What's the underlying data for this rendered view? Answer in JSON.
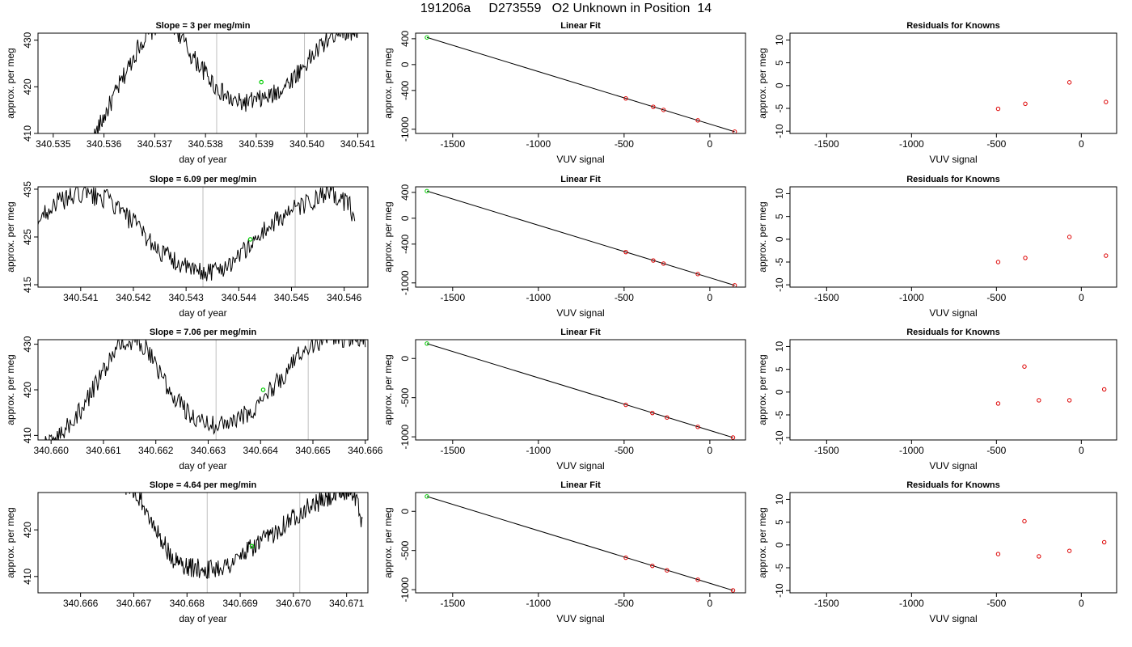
{
  "figure": {
    "title": "191206a     D273559   O2 Unknown in Position  14"
  },
  "chart_data": [
    {
      "type": "line",
      "title": "Slope =  3  per meg/min",
      "xlabel": "day of year",
      "ylabel": "approx. per meg",
      "xlim": [
        340.5347,
        340.5412
      ],
      "ylim": [
        410,
        431.5
      ],
      "xticks": [
        "340.535",
        "340.536",
        "340.537",
        "340.538",
        "340.539",
        "340.540",
        "340.541"
      ],
      "yticks": [
        "410",
        "420",
        "430"
      ],
      "trace_range": [
        340.53575,
        340.54115
      ],
      "trace_knots": [
        [
          340.53575,
          408
        ],
        [
          340.5362,
          418
        ],
        [
          340.5367,
          429
        ],
        [
          340.5371,
          434
        ],
        [
          340.5374,
          433
        ],
        [
          340.5377,
          427
        ],
        [
          340.538,
          423
        ],
        [
          340.5382,
          420
        ],
        [
          340.5385,
          417
        ],
        [
          340.5387,
          416.5
        ],
        [
          340.539,
          417
        ],
        [
          340.5393,
          418
        ],
        [
          340.5396,
          420.5
        ],
        [
          340.5399,
          424
        ],
        [
          340.5403,
          429
        ],
        [
          340.5406,
          432
        ],
        [
          340.54115,
          432
        ]
      ],
      "vertical_lines": [
        340.53822,
        340.53995
      ],
      "highlight_point": [
        340.5391,
        421
      ],
      "line_color": "#000000",
      "highlight_color": "#00cc00",
      "vline_color": "#bebebe"
    },
    {
      "type": "scatter",
      "title": "Linear Fit",
      "xlabel": "VUV signal",
      "ylabel": "approx. per meg",
      "xlim": [
        -1716,
        208
      ],
      "ylim": [
        -1065,
        486
      ],
      "xticks": [
        "-1500",
        "-1000",
        "-500",
        "0"
      ],
      "yticks": [
        "-1000",
        "-400",
        "0",
        "400"
      ],
      "points": [
        {
          "x": -1650,
          "y": 420
        },
        {
          "x": -490,
          "y": -523
        },
        {
          "x": -330,
          "y": -653
        },
        {
          "x": -270,
          "y": -701
        },
        {
          "x": -70,
          "y": -863
        },
        {
          "x": 145,
          "y": -1038
        }
      ],
      "fit_line": [
        {
          "x": -1650,
          "y": 420
        },
        {
          "x": 145,
          "y": -1038
        }
      ],
      "highlight_index": 0,
      "point_color": "#dd0000",
      "highlight_color": "#00cc00"
    },
    {
      "type": "scatter",
      "title": "Residuals for Knowns",
      "xlabel": "VUV signal",
      "ylabel": "approx. per meg",
      "xlim": [
        -1716,
        208
      ],
      "ylim": [
        -10.5,
        11.5
      ],
      "xticks": [
        "-1500",
        "-1000",
        "-500",
        "0"
      ],
      "yticks": [
        "-10",
        "-5",
        "0",
        "5",
        "10"
      ],
      "points": [
        {
          "x": -490,
          "y": -5.1
        },
        {
          "x": -330,
          "y": -4.0
        },
        {
          "x": -70,
          "y": 0.7
        },
        {
          "x": 145,
          "y": -3.6
        }
      ],
      "point_color": "#dd0000"
    },
    {
      "type": "line",
      "title": "Slope =  6.09  per meg/min",
      "xlabel": "day of year",
      "ylabel": "approx. per meg",
      "xlim": [
        340.54019,
        340.54645
      ],
      "ylim": [
        414.5,
        435.5
      ],
      "xticks": [
        "340.541",
        "340.542",
        "340.543",
        "340.544",
        "340.545",
        "340.546"
      ],
      "yticks": [
        "415",
        "425",
        "435"
      ],
      "trace_range": [
        340.5401,
        340.5462
      ],
      "trace_knots": [
        [
          340.5401,
          427.5
        ],
        [
          340.5405,
          432
        ],
        [
          340.541,
          434
        ],
        [
          340.5415,
          433
        ],
        [
          340.542,
          428
        ],
        [
          340.5425,
          422
        ],
        [
          340.543,
          418.5
        ],
        [
          340.5433,
          417.5
        ],
        [
          340.5437,
          418.5
        ],
        [
          340.5441,
          422
        ],
        [
          340.5445,
          426.5
        ],
        [
          340.5449,
          430
        ],
        [
          340.5453,
          432
        ],
        [
          340.5457,
          434
        ],
        [
          340.5461,
          432
        ],
        [
          340.5462,
          428
        ]
      ],
      "vertical_lines": [
        340.54332,
        340.54507
      ],
      "highlight_point": [
        340.54422,
        424.5
      ],
      "line_color": "#000000",
      "highlight_color": "#00cc00",
      "vline_color": "#bebebe"
    },
    {
      "type": "scatter",
      "title": "Linear Fit",
      "xlabel": "VUV signal",
      "ylabel": "approx. per meg",
      "xlim": [
        -1716,
        208
      ],
      "ylim": [
        -1065,
        486
      ],
      "xticks": [
        "-1500",
        "-1000",
        "-500",
        "0"
      ],
      "yticks": [
        "-1000",
        "-400",
        "0",
        "400"
      ],
      "points": [
        {
          "x": -1650,
          "y": 420
        },
        {
          "x": -490,
          "y": -523
        },
        {
          "x": -330,
          "y": -653
        },
        {
          "x": -270,
          "y": -701
        },
        {
          "x": -70,
          "y": -863
        },
        {
          "x": 145,
          "y": -1038
        }
      ],
      "fit_line": [
        {
          "x": -1650,
          "y": 420
        },
        {
          "x": 145,
          "y": -1038
        }
      ],
      "highlight_index": 0,
      "point_color": "#dd0000",
      "highlight_color": "#00cc00"
    },
    {
      "type": "scatter",
      "title": "Residuals for Knowns",
      "xlabel": "VUV signal",
      "ylabel": "approx. per meg",
      "xlim": [
        -1716,
        208
      ],
      "ylim": [
        -10.5,
        11.5
      ],
      "xticks": [
        "-1500",
        "-1000",
        "-500",
        "0"
      ],
      "yticks": [
        "-10",
        "-5",
        "0",
        "5",
        "10"
      ],
      "points": [
        {
          "x": -490,
          "y": -5.0
        },
        {
          "x": -330,
          "y": -4.1
        },
        {
          "x": -70,
          "y": 0.5
        },
        {
          "x": 145,
          "y": -3.6
        }
      ],
      "point_color": "#dd0000"
    },
    {
      "type": "line",
      "title": "Slope =  7.06  per meg/min",
      "xlabel": "day of year",
      "ylabel": "approx. per meg",
      "xlim": [
        340.65975,
        340.66605
      ],
      "ylim": [
        409,
        431
      ],
      "xticks": [
        "340.660",
        "340.661",
        "340.662",
        "340.663",
        "340.664",
        "340.665",
        "340.666"
      ],
      "yticks": [
        "410",
        "420",
        "430"
      ],
      "trace_range": [
        340.6598,
        340.666
      ],
      "trace_knots": [
        [
          340.6598,
          407
        ],
        [
          340.6602,
          410.5
        ],
        [
          340.6606,
          416
        ],
        [
          340.661,
          424
        ],
        [
          340.6613,
          430
        ],
        [
          340.6616,
          431
        ],
        [
          340.6619,
          428
        ],
        [
          340.6622,
          421
        ],
        [
          340.6626,
          415
        ],
        [
          340.6629,
          413
        ],
        [
          340.6632,
          412
        ],
        [
          340.6635,
          413
        ],
        [
          340.6639,
          416
        ],
        [
          340.6642,
          420
        ],
        [
          340.6645,
          424
        ],
        [
          340.6648,
          429
        ],
        [
          340.6652,
          431
        ],
        [
          340.6657,
          431.5
        ],
        [
          340.666,
          431
        ]
      ],
      "vertical_lines": [
        340.66315,
        340.66491
      ],
      "highlight_point": [
        340.66405,
        420
      ],
      "line_color": "#000000",
      "highlight_color": "#00cc00",
      "vline_color": "#bebebe"
    },
    {
      "type": "scatter",
      "title": "Linear Fit",
      "xlabel": "VUV signal",
      "ylabel": "approx. per meg",
      "xlim": [
        -1716,
        208
      ],
      "ylim": [
        -1040,
        240
      ],
      "xticks": [
        "-1500",
        "-1000",
        "-500",
        "0"
      ],
      "yticks": [
        "-1000",
        "-500",
        "0"
      ],
      "points": [
        {
          "x": -1650,
          "y": 190
        },
        {
          "x": -490,
          "y": -592
        },
        {
          "x": -335,
          "y": -696
        },
        {
          "x": -250,
          "y": -753
        },
        {
          "x": -70,
          "y": -873
        },
        {
          "x": 135,
          "y": -1009
        }
      ],
      "fit_line": [
        {
          "x": -1650,
          "y": 190
        },
        {
          "x": 135,
          "y": -1009
        }
      ],
      "highlight_index": 0,
      "point_color": "#dd0000",
      "highlight_color": "#00cc00"
    },
    {
      "type": "scatter",
      "title": "Residuals for Knowns",
      "xlabel": "VUV signal",
      "ylabel": "approx. per meg",
      "xlim": [
        -1716,
        208
      ],
      "ylim": [
        -10.5,
        11.5
      ],
      "xticks": [
        "-1500",
        "-1000",
        "-500",
        "0"
      ],
      "yticks": [
        "-10",
        "-5",
        "0",
        "5",
        "10"
      ],
      "points": [
        {
          "x": -490,
          "y": -2.5
        },
        {
          "x": -335,
          "y": 5.6
        },
        {
          "x": -250,
          "y": -1.8
        },
        {
          "x": -70,
          "y": -1.8
        },
        {
          "x": 135,
          "y": 0.6
        }
      ],
      "point_color": "#dd0000"
    },
    {
      "type": "line",
      "title": "Slope =  4.64  per meg/min",
      "xlabel": "day of year",
      "ylabel": "approx. per meg",
      "xlim": [
        340.6652,
        340.6714
      ],
      "ylim": [
        406.5,
        428
      ],
      "xticks": [
        "340.666",
        "340.667",
        "340.668",
        "340.669",
        "340.670",
        "340.671"
      ],
      "yticks": [
        "410",
        "420"
      ],
      "trace_range": [
        340.6668,
        340.6713
      ],
      "trace_knots": [
        [
          340.6668,
          430
        ],
        [
          340.6671,
          427
        ],
        [
          340.6674,
          421
        ],
        [
          340.6677,
          414
        ],
        [
          340.668,
          412
        ],
        [
          340.6684,
          411.5
        ],
        [
          340.6688,
          412.5
        ],
        [
          340.6692,
          416
        ],
        [
          340.6696,
          419
        ],
        [
          340.6699,
          422
        ],
        [
          340.6703,
          425
        ],
        [
          340.6707,
          427
        ],
        [
          340.6711,
          428.5
        ],
        [
          340.6712,
          426
        ],
        [
          340.6713,
          421
        ]
      ],
      "vertical_lines": [
        340.66838,
        340.67012
      ],
      "highlight_point": [
        340.66922,
        416.5
      ],
      "line_color": "#000000",
      "highlight_color": "#00cc00",
      "vline_color": "#bebebe"
    },
    {
      "type": "scatter",
      "title": "Linear Fit",
      "xlabel": "VUV signal",
      "ylabel": "approx. per meg",
      "xlim": [
        -1716,
        208
      ],
      "ylim": [
        -1040,
        240
      ],
      "xticks": [
        "-1500",
        "-1000",
        "-500",
        "0"
      ],
      "yticks": [
        "-1000",
        "-500",
        "0"
      ],
      "points": [
        {
          "x": -1650,
          "y": 190
        },
        {
          "x": -490,
          "y": -592
        },
        {
          "x": -335,
          "y": -696
        },
        {
          "x": -250,
          "y": -753
        },
        {
          "x": -70,
          "y": -873
        },
        {
          "x": 135,
          "y": -1009
        }
      ],
      "fit_line": [
        {
          "x": -1650,
          "y": 190
        },
        {
          "x": 135,
          "y": -1009
        }
      ],
      "highlight_index": 0,
      "point_color": "#dd0000",
      "highlight_color": "#00cc00"
    },
    {
      "type": "scatter",
      "title": "Residuals for Knowns",
      "xlabel": "VUV signal",
      "ylabel": "approx. per meg",
      "xlim": [
        -1716,
        208
      ],
      "ylim": [
        -10.5,
        11.5
      ],
      "xticks": [
        "-1500",
        "-1000",
        "-500",
        "0"
      ],
      "yticks": [
        "-10",
        "-5",
        "0",
        "5",
        "10"
      ],
      "points": [
        {
          "x": -490,
          "y": -2.0
        },
        {
          "x": -335,
          "y": 5.2
        },
        {
          "x": -250,
          "y": -2.5
        },
        {
          "x": -70,
          "y": -1.3
        },
        {
          "x": 135,
          "y": 0.6
        }
      ],
      "point_color": "#dd0000"
    }
  ]
}
